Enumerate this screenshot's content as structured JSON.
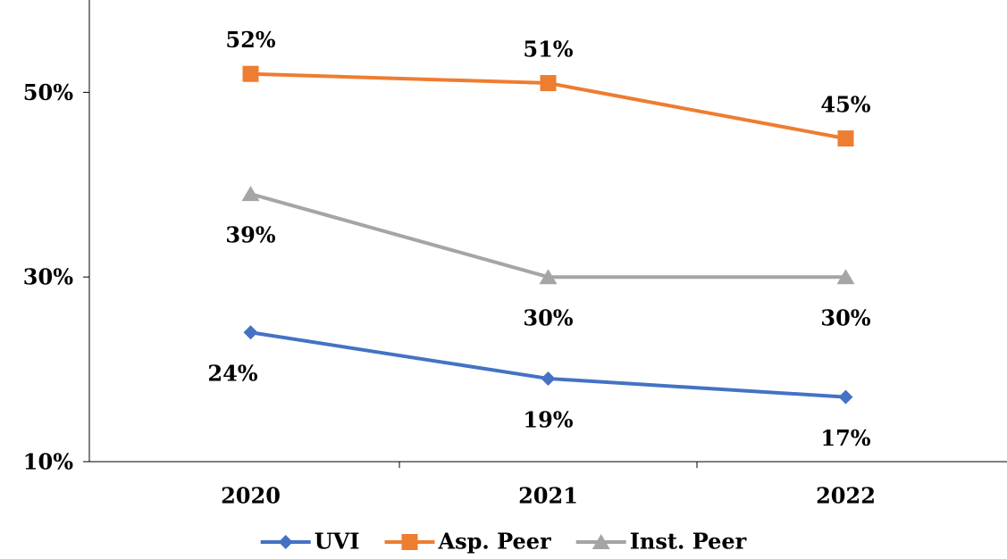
{
  "chart_data": {
    "type": "line",
    "categories": [
      "2020",
      "2021",
      "2022"
    ],
    "series": [
      {
        "name": "UVI",
        "color": "#4472c4",
        "marker": "diamond",
        "label_position": "below",
        "values": [
          24,
          19,
          17
        ],
        "value_labels": [
          "24%",
          "19%",
          "17%"
        ]
      },
      {
        "name": "Asp. Peer",
        "color": "#ed7d31",
        "marker": "square",
        "label_position": "above",
        "values": [
          52,
          51,
          45
        ],
        "value_labels": [
          "52%",
          "51%",
          "45%"
        ]
      },
      {
        "name": "Inst. Peer",
        "color": "#a5a5a5",
        "marker": "triangle",
        "label_position": "below",
        "values": [
          39,
          30,
          30
        ],
        "value_labels": [
          "39%",
          "30%",
          "30%"
        ]
      }
    ],
    "ylim": [
      10,
      60
    ],
    "yticks": [
      {
        "value": 10,
        "label": "10%"
      },
      {
        "value": 30,
        "label": "30%"
      },
      {
        "value": 50,
        "label": "50%"
      }
    ],
    "grid": false,
    "legend": "bottom"
  }
}
